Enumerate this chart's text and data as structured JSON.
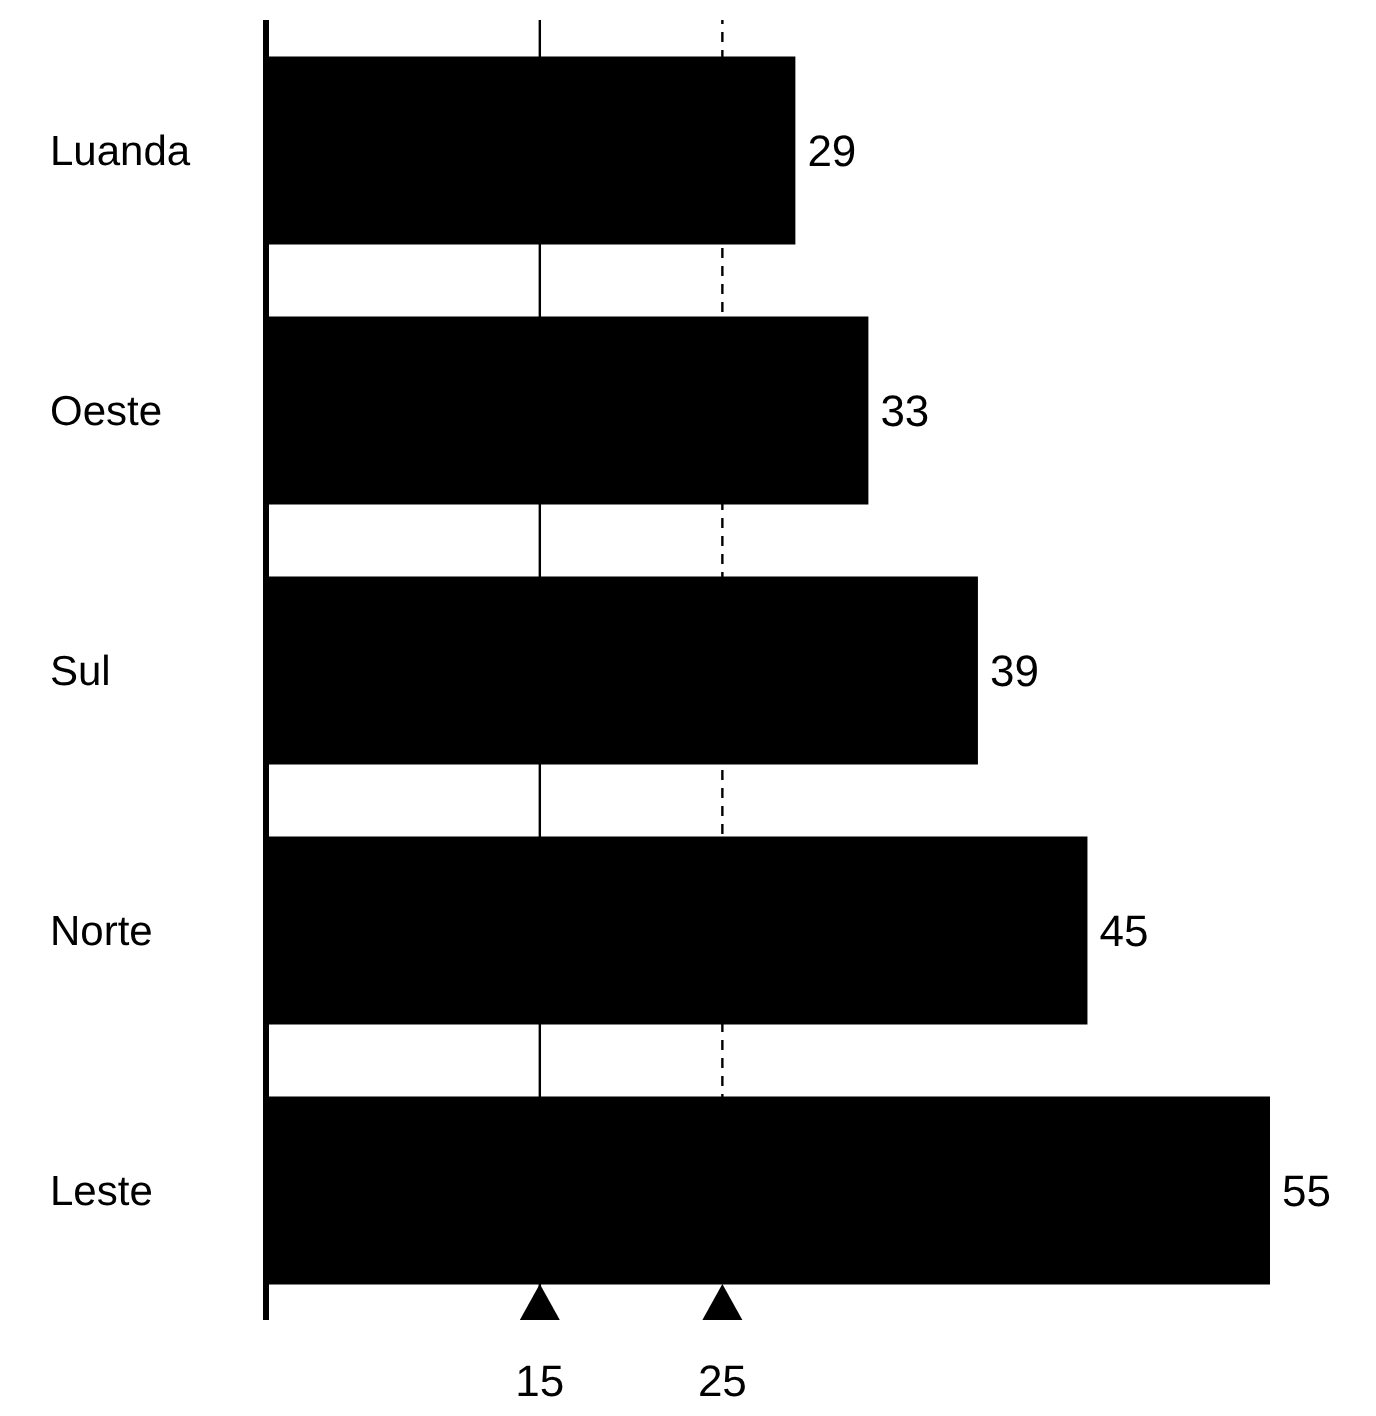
{
  "chart_data": {
    "type": "bar",
    "orientation": "horizontal",
    "categories": [
      "Luanda",
      "Oeste",
      "Sul",
      "Norte",
      "Leste"
    ],
    "values": [
      29,
      33,
      39,
      45,
      55
    ],
    "color": "#000000",
    "data_labels": true,
    "tick_labels": "y",
    "grid": false,
    "legend": false,
    "ref_lines": [
      {
        "axis": "x",
        "value": 15,
        "label": "15",
        "line_style": "solid",
        "color": "#000000"
      },
      {
        "axis": "x",
        "value": 25,
        "label": "25",
        "line_style": "dashed",
        "color": "#000000"
      }
    ]
  }
}
